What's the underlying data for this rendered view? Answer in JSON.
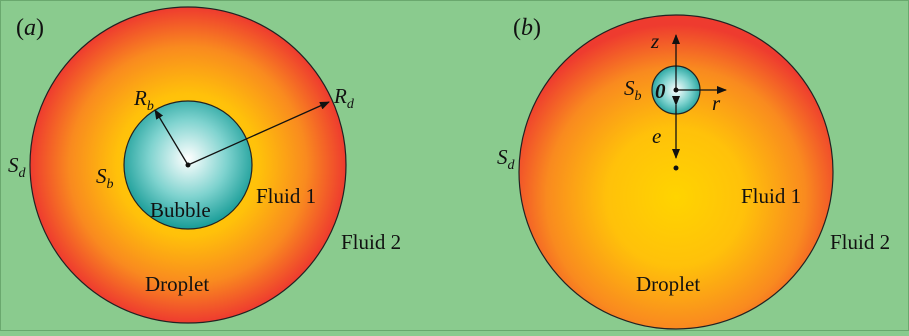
{
  "panels": [
    {
      "label_open": "(",
      "label_letter": "a",
      "label_close": ")",
      "droplet": "Droplet",
      "bubble": "Bubble",
      "fluid_inner": "Fluid 1",
      "fluid_outer": "Fluid 2",
      "surface_droplet": {
        "main": "S",
        "sub": "d"
      },
      "surface_bubble": {
        "main": "S",
        "sub": "b"
      },
      "radius_bubble": {
        "main": "R",
        "sub": "b"
      },
      "radius_droplet": {
        "main": "R",
        "sub": "d"
      }
    },
    {
      "label_open": "(",
      "label_letter": "b",
      "label_close": ")",
      "droplet": "Droplet",
      "fluid_inner": "Fluid 1",
      "fluid_outer": "Fluid 2",
      "surface_droplet": {
        "main": "S",
        "sub": "d"
      },
      "surface_bubble": {
        "main": "S",
        "sub": "b"
      },
      "axis_z": "z",
      "axis_r": "r",
      "origin": "0",
      "eccentricity": "e"
    }
  ],
  "colors": {
    "background": "#8acb8e",
    "droplet_center": "#ffd200",
    "droplet_edge": "#ee3b2f",
    "bubble_center": "#ffffff",
    "bubble_edge": "#1a9f9a"
  }
}
